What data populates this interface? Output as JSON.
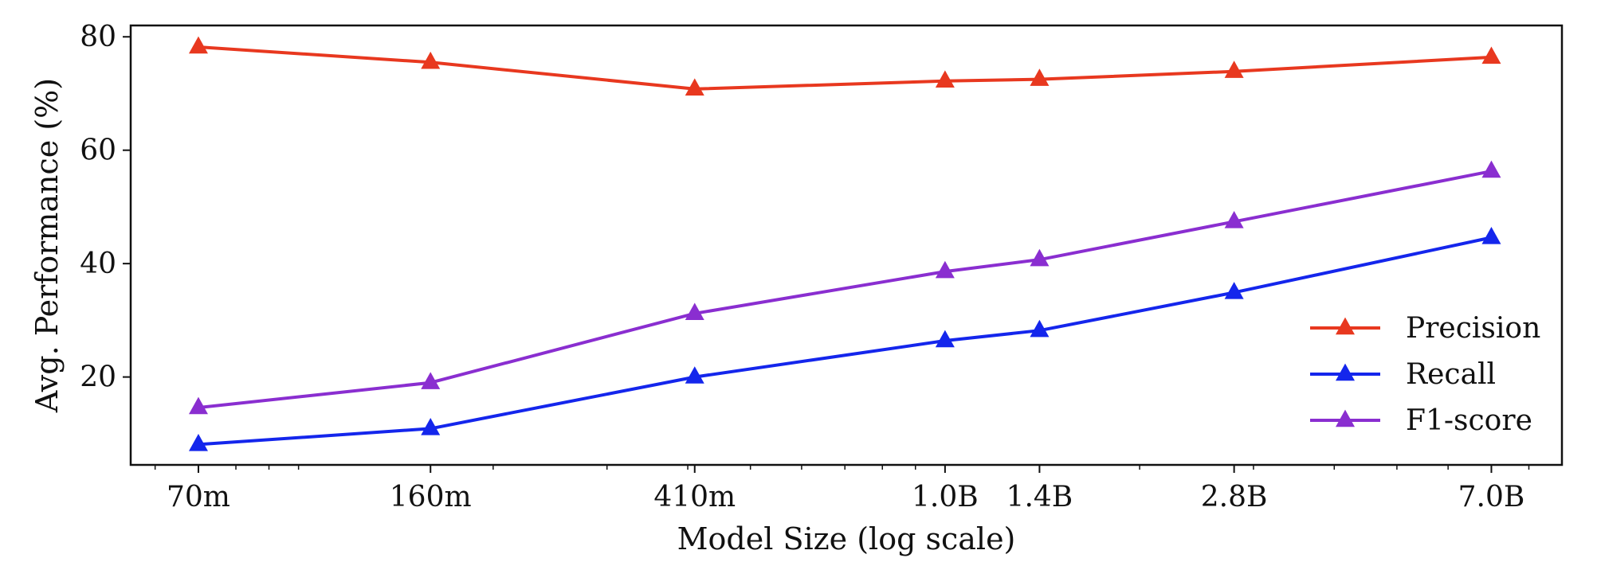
{
  "chart_data": {
    "type": "line",
    "xlabel": "Model Size (log scale)",
    "ylabel": "Avg. Performance (%)",
    "x_scale": "log",
    "x_params_millions": [
      70,
      160,
      410,
      1000,
      1400,
      2800,
      7000
    ],
    "x_tick_labels": [
      "70m",
      "160m",
      "410m",
      "1.0B",
      "1.4B",
      "2.8B",
      "7.0B"
    ],
    "xlim": [
      55,
      9000
    ],
    "ylim": [
      4.5,
      82
    ],
    "y_ticks": [
      20,
      40,
      60,
      80
    ],
    "grid": false,
    "legend_position": "lower-right",
    "series": [
      {
        "name": "Precision",
        "color": "#e8381f",
        "marker": "triangle-up",
        "values": [
          78.2,
          75.5,
          70.8,
          72.2,
          72.5,
          73.9,
          76.4
        ]
      },
      {
        "name": "Recall",
        "color": "#1426ec",
        "marker": "triangle-up",
        "values": [
          8.1,
          10.9,
          20.0,
          26.4,
          28.2,
          34.9,
          44.6
        ]
      },
      {
        "name": "F1-score",
        "color": "#8a2ed0",
        "marker": "triangle-up",
        "values": [
          14.6,
          19.0,
          31.2,
          38.6,
          40.7,
          47.4,
          56.3
        ]
      }
    ]
  }
}
